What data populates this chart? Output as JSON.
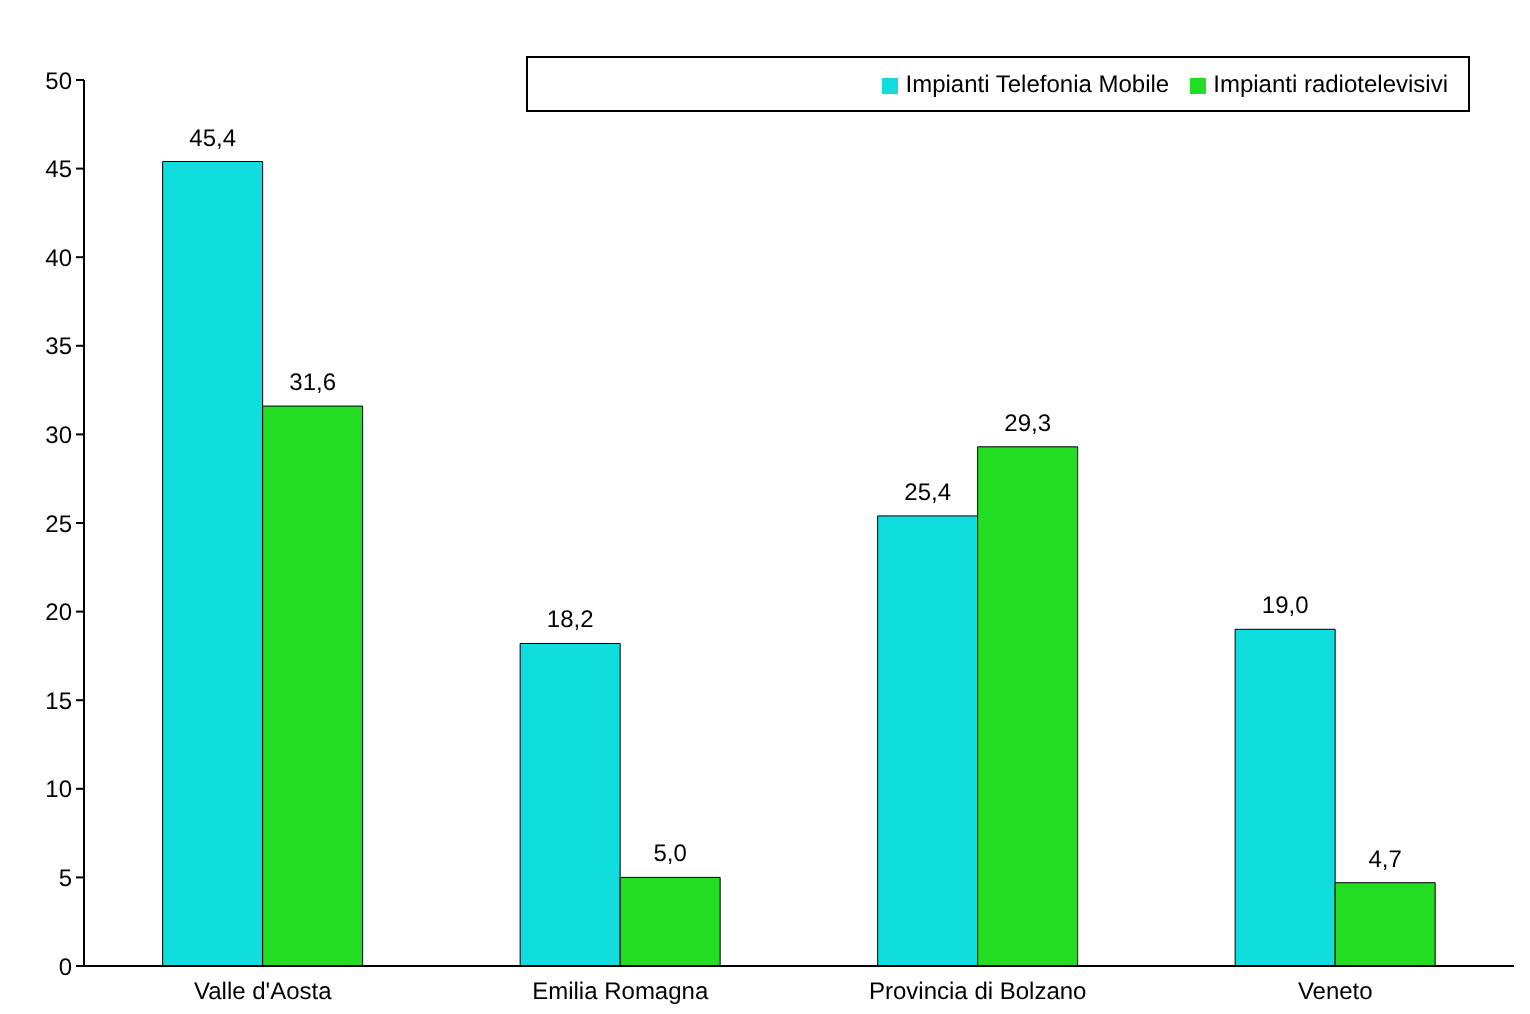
{
  "chart_data": {
    "type": "bar",
    "categories": [
      "Valle d'Aosta",
      "Emilia Romagna",
      "Provincia di Bolzano",
      "Veneto"
    ],
    "series": [
      {
        "name": "Impianti Telefonia Mobile",
        "color": "#10dede",
        "values": [
          45.4,
          18.2,
          25.4,
          19.0
        ],
        "value_labels": [
          "45,4",
          "18,2",
          "25,4",
          "19,0"
        ]
      },
      {
        "name": "Impianti radiotelevisivi",
        "color": "#22dd22",
        "values": [
          31.6,
          5.0,
          29.3,
          4.7
        ],
        "value_labels": [
          "31,6",
          "5,0",
          "29,3",
          "4,7"
        ]
      }
    ],
    "ylim": [
      0,
      50
    ],
    "yticks": [
      0,
      5,
      10,
      15,
      20,
      25,
      30,
      35,
      40,
      45,
      50
    ],
    "grid": false,
    "legend": "top right"
  }
}
